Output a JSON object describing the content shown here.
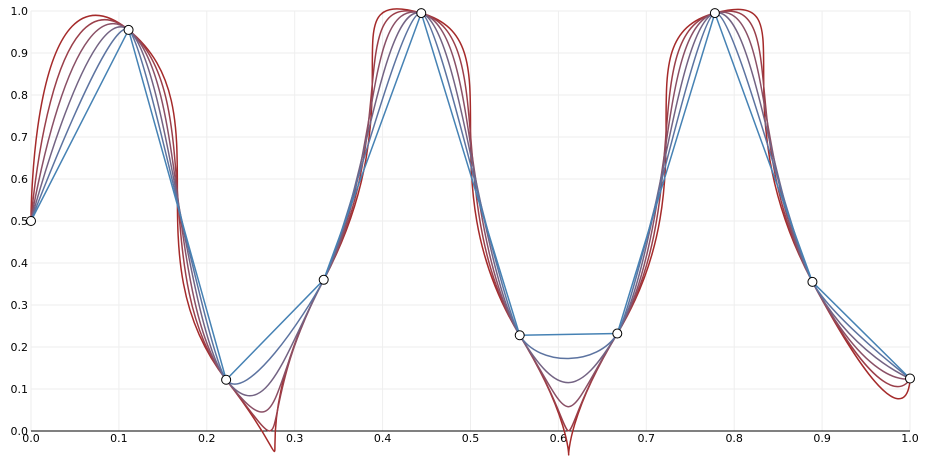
{
  "chart_data": {
    "type": "line",
    "interpolation": "cardinal",
    "x": [
      0,
      0.111,
      0.222,
      0.333,
      0.444,
      0.556,
      0.667,
      0.778,
      0.889,
      1
    ],
    "values": [
      0.5,
      0.955,
      0.122,
      0.36,
      0.995,
      0.228,
      0.232,
      0.995,
      0.355,
      0.125
    ],
    "curves": [
      {
        "tension": 0,
        "color": "#a52a2a"
      },
      {
        "tension": 0.2,
        "color": "#9a3f4a"
      },
      {
        "tension": 0.4,
        "color": "#8a5066"
      },
      {
        "tension": 0.6,
        "color": "#736383"
      },
      {
        "tension": 0.8,
        "color": "#5c73a0"
      },
      {
        "tension": 1,
        "color": "#4682b4"
      }
    ],
    "xlim": [
      0,
      1
    ],
    "ylim": [
      0,
      1
    ],
    "grid": true,
    "xticks": [
      {
        "value": 0,
        "label": "0.0"
      },
      {
        "value": 0.1,
        "label": "0.1"
      },
      {
        "value": 0.2,
        "label": "0.2"
      },
      {
        "value": 0.3,
        "label": "0.3"
      },
      {
        "value": 0.4,
        "label": "0.4"
      },
      {
        "value": 0.5,
        "label": "0.5"
      },
      {
        "value": 0.6,
        "label": "0.6"
      },
      {
        "value": 0.7,
        "label": "0.7"
      },
      {
        "value": 0.8,
        "label": "0.8"
      },
      {
        "value": 0.9,
        "label": "0.9"
      },
      {
        "value": 1,
        "label": "1.0"
      }
    ],
    "yticks": [
      {
        "value": 0,
        "label": "0.0"
      },
      {
        "value": 0.1,
        "label": "0.1"
      },
      {
        "value": 0.2,
        "label": "0.2"
      },
      {
        "value": 0.3,
        "label": "0.3"
      },
      {
        "value": 0.4,
        "label": "0.4"
      },
      {
        "value": 0.5,
        "label": "0.5"
      },
      {
        "value": 0.6,
        "label": "0.6"
      },
      {
        "value": 0.7,
        "label": "0.7"
      },
      {
        "value": 0.8,
        "label": "0.8"
      },
      {
        "value": 0.9,
        "label": "0.9"
      },
      {
        "value": 1,
        "label": "1.0"
      }
    ]
  }
}
